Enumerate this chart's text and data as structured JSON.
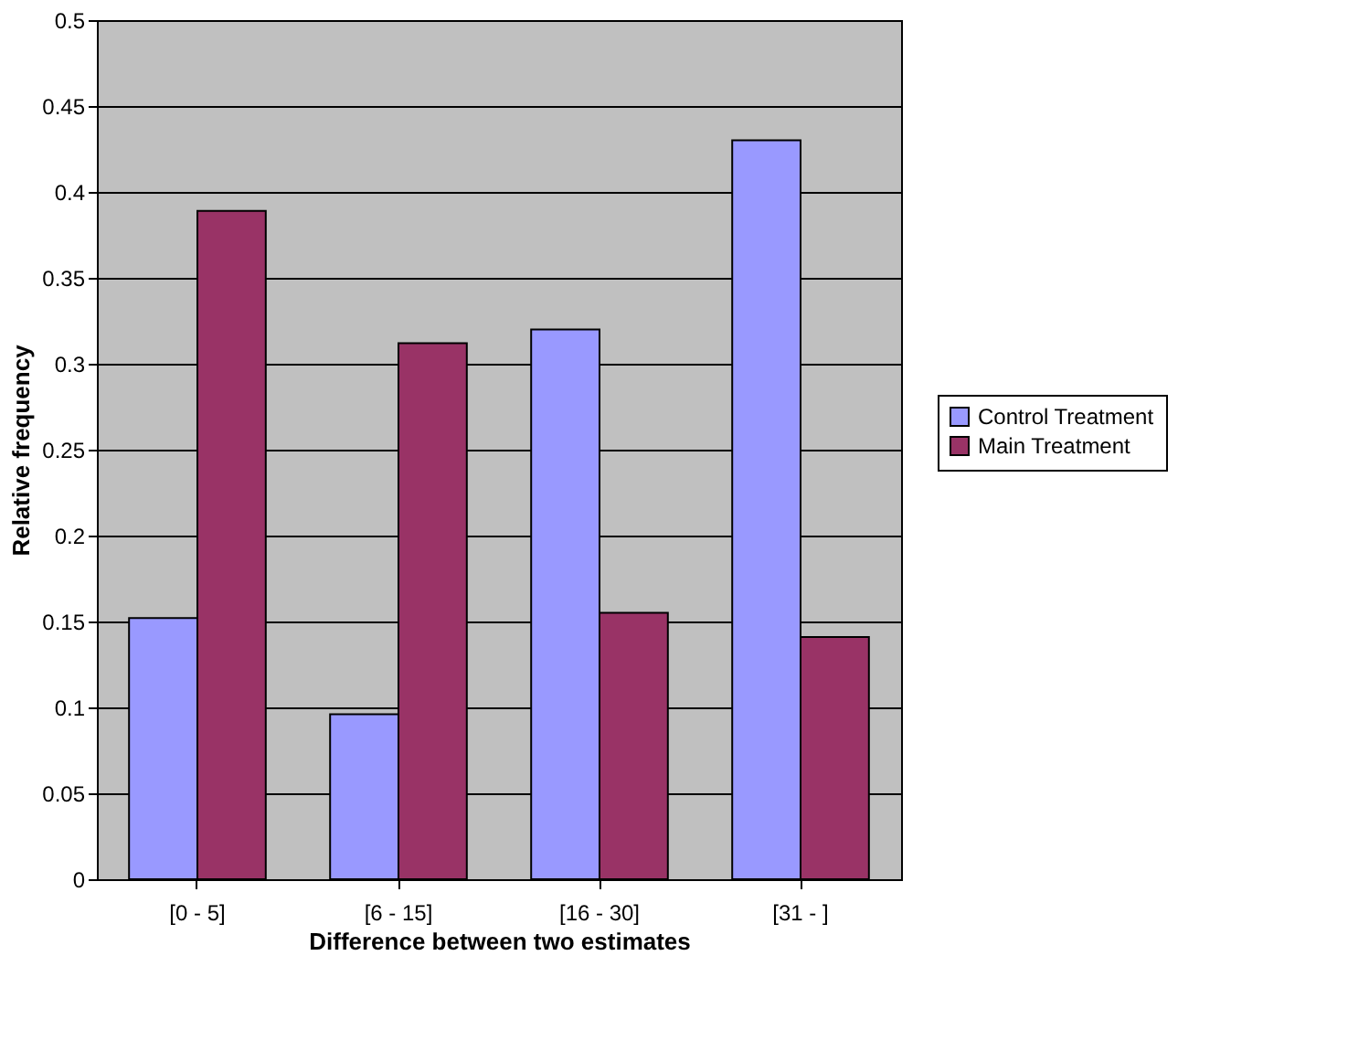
{
  "chart_data": {
    "type": "bar",
    "xlabel": "Difference between two estimates",
    "ylabel": "Relative frequency",
    "categories": [
      "[0 - 5]",
      "[6 - 15]",
      "[16 - 30]",
      "[31 -  ]"
    ],
    "series": [
      {
        "name": "Control Treatment",
        "color": "#9999ff",
        "values": [
          0.152,
          0.096,
          0.32,
          0.43
        ]
      },
      {
        "name": "Main Treatment",
        "color": "#993366",
        "values": [
          0.389,
          0.312,
          0.155,
          0.141
        ]
      }
    ],
    "ylim": [
      0,
      0.5
    ],
    "yticks": [
      0,
      0.05,
      0.1,
      0.15,
      0.2,
      0.25,
      0.3,
      0.35,
      0.4,
      0.45,
      0.5
    ],
    "grid": "y",
    "legend": "right"
  }
}
